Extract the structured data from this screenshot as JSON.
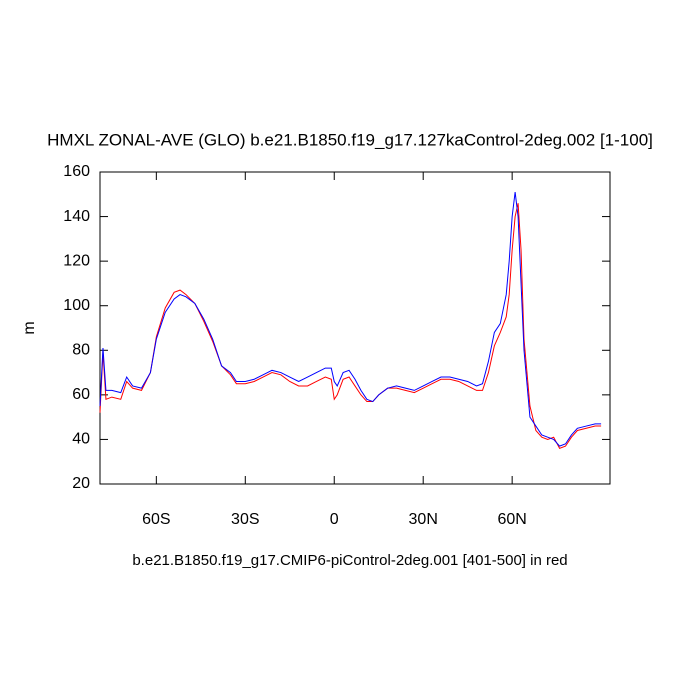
{
  "chart_data": {
    "type": "line",
    "title": "HMXL ZONAL-AVE (GLO) b.e21.B1850.f19_g17.127kaControl-2deg.002 [1-100]",
    "subtitle": "b.e21.B1850.f19_g17.CMIP6-piControl-2deg.001 [401-500] in red",
    "ylabel": "m",
    "x": [
      -79,
      -78,
      -77,
      -75,
      -72,
      -70,
      -68,
      -65,
      -62,
      -60,
      -57,
      -54,
      -52,
      -50,
      -47,
      -44,
      -41,
      -38,
      -35,
      -33,
      -30,
      -27,
      -24,
      -21,
      -18,
      -15,
      -12,
      -9,
      -6,
      -3,
      -1,
      0,
      1,
      3,
      5,
      7,
      9,
      11,
      13,
      15,
      18,
      21,
      24,
      27,
      30,
      33,
      36,
      39,
      42,
      45,
      48,
      50,
      52,
      54,
      56,
      58,
      59,
      60,
      61,
      62,
      63,
      64,
      66,
      68,
      70,
      72,
      74,
      76,
      78,
      80,
      82,
      85,
      88,
      90
    ],
    "series": [
      {
        "color": "#0000ff",
        "values": [
          55,
          81,
          62,
          62,
          61,
          68,
          64,
          63,
          70,
          85,
          97,
          103,
          105,
          104,
          101,
          94,
          85,
          73,
          70,
          66,
          66,
          67,
          69,
          71,
          70,
          68,
          66,
          68,
          70,
          72,
          72,
          66,
          64,
          70,
          71,
          67,
          62,
          58,
          57,
          60,
          63,
          64,
          63,
          62,
          64,
          66,
          68,
          68,
          67,
          66,
          64,
          65,
          75,
          88,
          92,
          105,
          120,
          140,
          151,
          140,
          110,
          80,
          50,
          46,
          42,
          41,
          40,
          37,
          38,
          42,
          45,
          46,
          47,
          47
        ]
      },
      {
        "color": "#ff0000",
        "values": [
          52,
          79,
          58,
          59,
          58,
          66,
          63,
          62,
          70,
          86,
          99,
          106,
          107,
          105,
          101,
          93,
          84,
          73,
          69,
          65,
          65,
          66,
          68,
          70,
          69,
          66,
          64,
          64,
          66,
          68,
          67,
          58,
          60,
          67,
          68,
          64,
          60,
          57,
          57,
          60,
          63,
          63,
          62,
          61,
          63,
          65,
          67,
          67,
          66,
          64,
          62,
          62,
          70,
          82,
          88,
          95,
          105,
          125,
          140,
          146,
          125,
          85,
          55,
          44,
          41,
          40,
          41,
          36,
          37,
          41,
          44,
          45,
          46,
          46
        ]
      }
    ],
    "xlim": [
      -79,
      93
    ],
    "xticks": [
      {
        "value": -60,
        "label": "60S"
      },
      {
        "value": -30,
        "label": "30S"
      },
      0,
      {
        "value": 30,
        "label": "30N"
      },
      {
        "value": 60,
        "label": "60N"
      }
    ],
    "ylim": [
      20,
      160
    ],
    "yticks": [
      20,
      40,
      60,
      80,
      100,
      120,
      140,
      160
    ]
  }
}
